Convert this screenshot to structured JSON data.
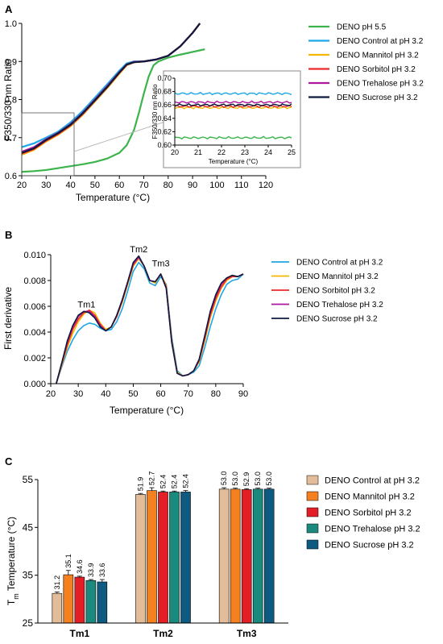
{
  "panels": {
    "a": "A",
    "b": "B",
    "c": "C"
  },
  "chart_data": [
    {
      "panel": "A",
      "type": "line",
      "xlabel": "Temperature (°C)",
      "ylabel": "F350/330 nm Ratio",
      "xlim": [
        20,
        120
      ],
      "ylim": [
        0.6,
        1.0
      ],
      "xticks": [
        20,
        30,
        40,
        50,
        60,
        70,
        80,
        90,
        100,
        110,
        120
      ],
      "yticks": [
        0.6,
        0.7,
        0.8,
        0.9,
        1.0
      ],
      "ytick_labels": [
        "0.6",
        "0.7",
        "0.8",
        "0.9",
        "1.0"
      ],
      "legend_position": "right",
      "series": [
        {
          "name": "DENO pH 5.5",
          "color": "#3cb44b",
          "x": [
            20,
            25,
            30,
            35,
            40,
            45,
            50,
            55,
            60,
            63,
            66,
            68,
            70,
            72,
            74,
            76,
            78,
            80,
            85,
            90,
            95
          ],
          "y": [
            0.61,
            0.612,
            0.615,
            0.62,
            0.625,
            0.63,
            0.636,
            0.645,
            0.66,
            0.68,
            0.72,
            0.765,
            0.815,
            0.86,
            0.89,
            0.9,
            0.905,
            0.91,
            0.918,
            0.925,
            0.932
          ]
        },
        {
          "name": "DENO Control at pH 3.2",
          "color": "#1ea7e6",
          "x": [
            20,
            25,
            30,
            35,
            40,
            45,
            50,
            55,
            60,
            63,
            66,
            70,
            75,
            80,
            85,
            90,
            93
          ],
          "y": [
            0.675,
            0.685,
            0.7,
            0.716,
            0.74,
            0.77,
            0.805,
            0.84,
            0.876,
            0.895,
            0.9,
            0.9,
            0.905,
            0.915,
            0.94,
            0.975,
            1.0
          ]
        },
        {
          "name": "DENO Mannitol pH 3.2",
          "color": "#f5b800",
          "x": [
            20,
            25,
            30,
            35,
            40,
            45,
            50,
            55,
            60,
            63,
            66,
            70,
            75,
            80,
            85,
            90,
            93
          ],
          "y": [
            0.655,
            0.668,
            0.69,
            0.708,
            0.73,
            0.76,
            0.795,
            0.83,
            0.868,
            0.89,
            0.898,
            0.9,
            0.905,
            0.915,
            0.94,
            0.975,
            1.0
          ]
        },
        {
          "name": "DENO Sorbitol pH 3.2",
          "color": "#ee2a2a",
          "x": [
            20,
            25,
            30,
            35,
            40,
            45,
            50,
            55,
            60,
            63,
            66,
            70,
            75,
            80,
            85,
            90,
            93
          ],
          "y": [
            0.658,
            0.67,
            0.692,
            0.71,
            0.732,
            0.762,
            0.797,
            0.832,
            0.87,
            0.891,
            0.898,
            0.9,
            0.905,
            0.915,
            0.94,
            0.975,
            1.0
          ]
        },
        {
          "name": "DENO Trehalose pH 3.2",
          "color": "#b0179f",
          "x": [
            20,
            25,
            30,
            35,
            40,
            45,
            50,
            55,
            60,
            63,
            66,
            70,
            75,
            80,
            85,
            90,
            93
          ],
          "y": [
            0.663,
            0.675,
            0.696,
            0.713,
            0.735,
            0.765,
            0.8,
            0.835,
            0.872,
            0.892,
            0.899,
            0.9,
            0.905,
            0.915,
            0.94,
            0.975,
            1.0
          ]
        },
        {
          "name": "DENO Sucrose pH 3.2",
          "color": "#0d1b3e",
          "x": [
            20,
            25,
            30,
            35,
            40,
            45,
            50,
            55,
            60,
            63,
            66,
            70,
            75,
            80,
            85,
            90,
            93
          ],
          "y": [
            0.66,
            0.672,
            0.694,
            0.712,
            0.734,
            0.764,
            0.798,
            0.833,
            0.871,
            0.892,
            0.898,
            0.9,
            0.905,
            0.915,
            0.94,
            0.975,
            1.0
          ]
        }
      ],
      "inset": {
        "xlabel": "Temperature (°C)",
        "ylabel": "F350/330 nm Ratio",
        "xlim": [
          20,
          25
        ],
        "ylim": [
          0.6,
          0.7
        ],
        "xticks": [
          20,
          21,
          22,
          23,
          24,
          25
        ],
        "yticks": [
          0.6,
          0.62,
          0.64,
          0.66,
          0.68,
          0.7
        ],
        "ytick_labels": [
          "0.60",
          "0.62",
          "0.64",
          "0.66",
          "0.68",
          "0.70"
        ],
        "series": [
          {
            "color": "#3cb44b",
            "y": 0.611
          },
          {
            "color": "#1ea7e6",
            "y": 0.677
          },
          {
            "color": "#f5b800",
            "y": 0.656
          },
          {
            "color": "#ee2a2a",
            "y": 0.658
          },
          {
            "color": "#b0179f",
            "y": 0.664
          },
          {
            "color": "#0d1b3e",
            "y": 0.66
          }
        ]
      }
    },
    {
      "panel": "B",
      "type": "line",
      "xlabel": "Temperature (°C)",
      "ylabel": "First derivative",
      "xlim": [
        20,
        90
      ],
      "ylim": [
        0,
        0.01
      ],
      "xticks": [
        20,
        30,
        40,
        50,
        60,
        70,
        80,
        90
      ],
      "yticks": [
        0,
        0.002,
        0.004,
        0.006,
        0.008,
        0.01
      ],
      "ytick_labels": [
        "0.000",
        "0.002",
        "0.004",
        "0.006",
        "0.008",
        "0.010"
      ],
      "annotations": [
        {
          "text": "Tm1",
          "x": 33,
          "y": 0.0059
        },
        {
          "text": "Tm2",
          "x": 52,
          "y": 0.0102
        },
        {
          "text": "Tm3",
          "x": 60,
          "y": 0.0091
        }
      ],
      "legend_position": "right",
      "series": [
        {
          "name": "DENO Control at pH 3.2",
          "color": "#1ea7e6",
          "x": [
            22,
            24,
            26,
            28,
            30,
            32,
            34,
            36,
            38,
            40,
            42,
            44,
            46,
            48,
            50,
            52,
            54,
            56,
            58,
            60,
            62,
            64,
            66,
            68,
            70,
            72,
            74,
            76,
            78,
            80,
            82,
            84,
            86,
            88,
            90
          ],
          "y": [
            0,
            0.0013,
            0.0025,
            0.0034,
            0.0041,
            0.0045,
            0.0047,
            0.0046,
            0.0043,
            0.0041,
            0.0042,
            0.0048,
            0.0058,
            0.0072,
            0.0087,
            0.0094,
            0.0089,
            0.0078,
            0.0076,
            0.0083,
            0.0077,
            0.0036,
            0.001,
            0.0006,
            0.0007,
            0.0009,
            0.0014,
            0.0028,
            0.0044,
            0.0058,
            0.0069,
            0.0077,
            0.008,
            0.0081,
            0.0085
          ]
        },
        {
          "name": "DENO Mannitol pH 3.2",
          "color": "#f5b800",
          "x": [
            22,
            24,
            26,
            28,
            30,
            32,
            34,
            36,
            38,
            40,
            42,
            44,
            46,
            48,
            50,
            52,
            54,
            56,
            58,
            60,
            62,
            64,
            66,
            68,
            70,
            72,
            74,
            76,
            78,
            80,
            82,
            84,
            86,
            88,
            90
          ],
          "y": [
            0,
            0.0014,
            0.0028,
            0.0039,
            0.0048,
            0.0054,
            0.0057,
            0.0055,
            0.0047,
            0.0042,
            0.0044,
            0.0052,
            0.0063,
            0.0077,
            0.0091,
            0.0097,
            0.0091,
            0.008,
            0.0078,
            0.0085,
            0.0076,
            0.0034,
            0.0009,
            0.0006,
            0.0007,
            0.001,
            0.0017,
            0.0033,
            0.0051,
            0.0064,
            0.0074,
            0.008,
            0.0083,
            0.0083,
            0.0085
          ]
        },
        {
          "name": "DENO Sorbitol pH 3.2",
          "color": "#ee2a2a",
          "x": [
            22,
            24,
            26,
            28,
            30,
            32,
            34,
            36,
            38,
            40,
            42,
            44,
            46,
            48,
            50,
            52,
            54,
            56,
            58,
            60,
            62,
            64,
            66,
            68,
            70,
            72,
            74,
            76,
            78,
            80,
            82,
            84,
            86,
            88,
            90
          ],
          "y": [
            0,
            0.0015,
            0.003,
            0.0042,
            0.005,
            0.0055,
            0.0057,
            0.0053,
            0.0046,
            0.0041,
            0.0044,
            0.0052,
            0.0064,
            0.0078,
            0.0092,
            0.0098,
            0.0091,
            0.008,
            0.0079,
            0.0085,
            0.0075,
            0.0033,
            0.0008,
            0.0006,
            0.0007,
            0.001,
            0.0018,
            0.0035,
            0.0053,
            0.0066,
            0.0075,
            0.0081,
            0.0083,
            0.0083,
            0.0085
          ]
        },
        {
          "name": "DENO Trehalose pH 3.2",
          "color": "#b0179f",
          "x": [
            22,
            24,
            26,
            28,
            30,
            32,
            34,
            36,
            38,
            40,
            42,
            44,
            46,
            48,
            50,
            52,
            54,
            56,
            58,
            60,
            62,
            64,
            66,
            68,
            70,
            72,
            74,
            76,
            78,
            80,
            82,
            84,
            86,
            88,
            90
          ],
          "y": [
            0,
            0.0016,
            0.0032,
            0.0044,
            0.0052,
            0.0056,
            0.0056,
            0.0052,
            0.0045,
            0.0041,
            0.0044,
            0.0053,
            0.0065,
            0.0079,
            0.0093,
            0.0098,
            0.0091,
            0.008,
            0.0079,
            0.0085,
            0.0074,
            0.0032,
            0.0008,
            0.0006,
            0.0007,
            0.001,
            0.0019,
            0.0037,
            0.0055,
            0.0068,
            0.0077,
            0.0082,
            0.0084,
            0.0083,
            0.0085
          ]
        },
        {
          "name": "DENO Sucrose pH 3.2",
          "color": "#0d1b3e",
          "x": [
            22,
            24,
            26,
            28,
            30,
            32,
            34,
            36,
            38,
            40,
            42,
            44,
            46,
            48,
            50,
            52,
            54,
            56,
            58,
            60,
            62,
            64,
            66,
            68,
            70,
            72,
            74,
            76,
            78,
            80,
            82,
            84,
            86,
            88,
            90
          ],
          "y": [
            0,
            0.0016,
            0.0033,
            0.0045,
            0.0053,
            0.0056,
            0.0055,
            0.0051,
            0.0044,
            0.0041,
            0.0044,
            0.0053,
            0.0065,
            0.0079,
            0.0094,
            0.0099,
            0.0091,
            0.008,
            0.0079,
            0.0085,
            0.0074,
            0.0032,
            0.0008,
            0.0006,
            0.0007,
            0.001,
            0.0019,
            0.0037,
            0.0056,
            0.0069,
            0.0078,
            0.0082,
            0.0084,
            0.0083,
            0.0085
          ]
        }
      ]
    },
    {
      "panel": "C",
      "type": "bar",
      "categories": [
        "Tm1",
        "Tm2",
        "Tm3"
      ],
      "ylabel_main": "T",
      "ylabel_sub": "m",
      "ylabel_rest": " Temperature (°C)",
      "ylim": [
        25,
        55
      ],
      "yticks": [
        25,
        35,
        45,
        55
      ],
      "legend_position": "right",
      "series": [
        {
          "name": "DENO Control at pH 3.2",
          "color": "#e3bd99",
          "values": [
            31.2,
            51.9,
            53.0
          ],
          "errors": [
            0.3,
            0.2,
            0.3
          ],
          "labels": [
            "31.2",
            "51.9",
            "53.0"
          ]
        },
        {
          "name": "DENO Mannitol pH 3.2",
          "color": "#f58020",
          "values": [
            35.1,
            52.7,
            53.0
          ],
          "errors": [
            0.9,
            0.6,
            0.2
          ],
          "labels": [
            "35.1",
            "52.7",
            "53.0"
          ]
        },
        {
          "name": "DENO Sorbitol pH 3.2",
          "color": "#e41e26",
          "values": [
            34.6,
            52.4,
            52.9
          ],
          "errors": [
            0.2,
            0.2,
            0.2
          ],
          "labels": [
            "34.6",
            "52.4",
            "52.9"
          ]
        },
        {
          "name": "DENO Trehalose pH 3.2",
          "color": "#1a8a7e",
          "values": [
            33.9,
            52.4,
            53.0
          ],
          "errors": [
            0.2,
            0.2,
            0.2
          ],
          "labels": [
            "33.9",
            "52.4",
            "53.0"
          ]
        },
        {
          "name": "DENO Sucrose pH 3.2",
          "color": "#0e5a80",
          "values": [
            33.6,
            52.4,
            53.0
          ],
          "errors": [
            0.5,
            0.3,
            0.2
          ],
          "labels": [
            "33.6",
            "52.4",
            "53.0"
          ]
        }
      ]
    }
  ]
}
